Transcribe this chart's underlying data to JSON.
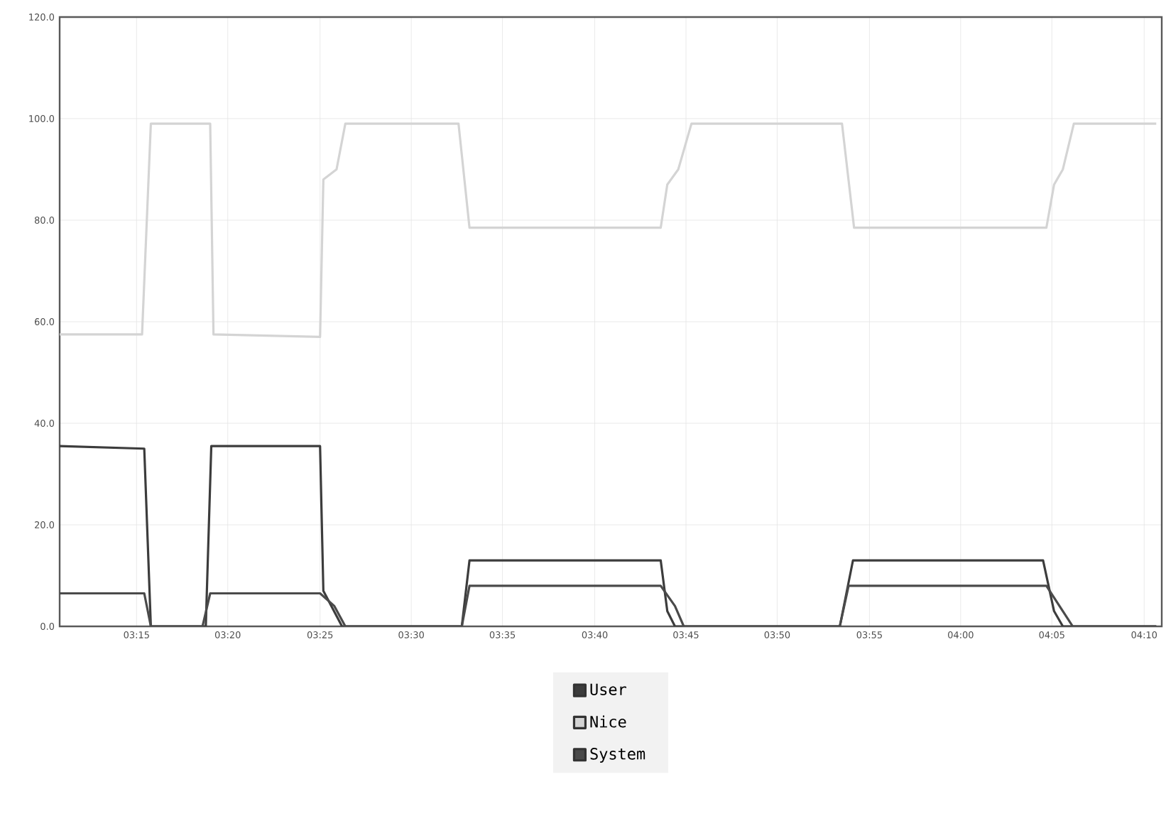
{
  "chart_data": {
    "type": "line",
    "xlim": [
      3.18,
      4.183
    ],
    "ylim": [
      0,
      120
    ],
    "xticks": [
      {
        "value": 3.25,
        "label": "03:15"
      },
      {
        "value": 3.333,
        "label": "03:20"
      },
      {
        "value": 3.417,
        "label": "03:25"
      },
      {
        "value": 3.5,
        "label": "03:30"
      },
      {
        "value": 3.583,
        "label": "03:35"
      },
      {
        "value": 3.667,
        "label": "03:40"
      },
      {
        "value": 3.75,
        "label": "03:45"
      },
      {
        "value": 3.833,
        "label": "03:50"
      },
      {
        "value": 3.917,
        "label": "03:55"
      },
      {
        "value": 4.0,
        "label": "04:00"
      },
      {
        "value": 4.083,
        "label": "04:05"
      },
      {
        "value": 4.167,
        "label": "04:10"
      }
    ],
    "yticks": [
      {
        "value": 0,
        "label": "0.0"
      },
      {
        "value": 20,
        "label": "20.0"
      },
      {
        "value": 40,
        "label": "40.0"
      },
      {
        "value": 60,
        "label": "60.0"
      },
      {
        "value": 80,
        "label": "80.0"
      },
      {
        "value": 100,
        "label": "100.0"
      },
      {
        "value": 120,
        "label": "120.0"
      }
    ],
    "grid": true,
    "legend": "bottom",
    "marker": "none",
    "series": [
      {
        "name": "User",
        "color": "#3c3c3c",
        "x": [
          3.18,
          3.257,
          3.263,
          3.313,
          3.318,
          3.417,
          3.42,
          3.437,
          3.546,
          3.553,
          3.727,
          3.733,
          3.74,
          3.89,
          3.902,
          4.075,
          4.085,
          4.093,
          4.178
        ],
        "values": [
          35.5,
          35,
          0,
          0,
          35.5,
          35.5,
          7,
          0,
          0,
          13,
          13,
          3,
          0,
          0,
          13,
          13,
          3,
          0,
          0
        ]
      },
      {
        "name": "Nice",
        "color": "#d4d4d4",
        "x": [
          3.18,
          3.255,
          3.263,
          3.317,
          3.32,
          3.417,
          3.42,
          3.432,
          3.44,
          3.543,
          3.553,
          3.727,
          3.733,
          3.743,
          3.755,
          3.892,
          3.903,
          4.078,
          4.085,
          4.093,
          4.103,
          4.178
        ],
        "values": [
          57.5,
          57.5,
          99,
          99,
          57.5,
          57,
          88,
          90,
          99,
          99,
          78.5,
          78.5,
          87,
          90,
          99,
          99,
          78.5,
          78.5,
          87,
          90,
          99,
          99
        ]
      },
      {
        "name": "System",
        "color": "#4a4a4a",
        "x": [
          3.18,
          3.257,
          3.263,
          3.31,
          3.317,
          3.417,
          3.43,
          3.44,
          3.546,
          3.553,
          3.727,
          3.74,
          3.748,
          3.89,
          3.898,
          4.078,
          4.093,
          4.102,
          4.178
        ],
        "values": [
          6.5,
          6.5,
          0,
          0,
          6.5,
          6.5,
          4,
          0,
          0,
          8,
          8,
          4,
          0,
          0,
          8,
          8,
          3,
          0,
          0
        ]
      }
    ]
  }
}
